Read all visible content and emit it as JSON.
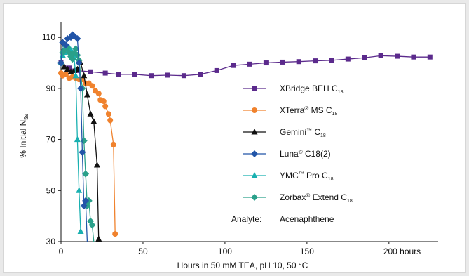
{
  "chart_data": {
    "type": "line",
    "xlabel": "Hours in 50 mM TEA, pH 10, 50 °C",
    "ylabel": {
      "prefix": "% Initial N",
      "subscript": "5s"
    },
    "xlim": [
      0,
      230
    ],
    "ylim": [
      30,
      115
    ],
    "x_ticks": [
      "0",
      "50",
      "100",
      "150",
      "200 hours"
    ],
    "x_tick_values": [
      0,
      50,
      100,
      150,
      200
    ],
    "y_ticks": [
      "30",
      "50",
      "70",
      "90",
      "110"
    ],
    "y_tick_values": [
      30,
      50,
      70,
      90,
      110
    ],
    "grid": false,
    "legend_position": "right",
    "series": [
      {
        "name": "XBridge BEH C18",
        "name_main": "XBridge BEH C",
        "name_sub": "18",
        "trademark": "",
        "color": "#5b2a8c",
        "marker": "square",
        "x": [
          0,
          5,
          10,
          18,
          27,
          35,
          45,
          55,
          65,
          75,
          85,
          95,
          105,
          115,
          125,
          135,
          145,
          155,
          165,
          175,
          185,
          195,
          205,
          215,
          225
        ],
        "y": [
          100,
          98,
          97,
          96.5,
          96,
          95.5,
          95.5,
          95,
          95.2,
          95,
          95.5,
          97,
          99,
          99.5,
          100,
          100.3,
          100.5,
          100.8,
          101,
          101.5,
          102,
          102.8,
          102.6,
          102.3,
          102.3
        ]
      },
      {
        "name": "XTerra® MS C18",
        "name_main": "XTerra",
        "name_sub": "18",
        "trademark": "®",
        "name_after": " MS C",
        "color": "#f0822d",
        "marker": "circle",
        "x": [
          0,
          1,
          3,
          5,
          7,
          9,
          11,
          13,
          15,
          17,
          19,
          21,
          23,
          24,
          26,
          27,
          29,
          30,
          32,
          33
        ],
        "y": [
          96,
          95,
          95.5,
          94,
          94.5,
          94,
          93.5,
          93.5,
          92,
          92,
          91,
          89,
          88,
          85.5,
          85,
          83,
          80,
          77.5,
          68,
          33
        ]
      },
      {
        "name": "Gemini™ C18",
        "name_main": "Gemini",
        "name_sub": "18",
        "trademark": "™",
        "name_after": " C",
        "color": "#111111",
        "marker": "triangle",
        "x": [
          0,
          2,
          4,
          6,
          8,
          10,
          12,
          14,
          16,
          18,
          20,
          22,
          23
        ],
        "y": [
          100,
          98.5,
          97.5,
          96.5,
          97,
          97.5,
          100,
          95,
          87.5,
          80,
          77,
          60,
          30
        ]
      },
      {
        "name": "Luna® C18(2)",
        "name_main": "Luna",
        "name_sub": "",
        "trademark": "®",
        "name_after": " C18(2)",
        "color": "#2255a8",
        "marker": "diamond",
        "x": [
          0,
          1,
          3,
          4,
          6,
          7,
          8,
          10,
          11,
          12,
          13,
          14,
          15,
          16
        ],
        "y": [
          100,
          108,
          107,
          109.5,
          110,
          111,
          110.5,
          109.5,
          100,
          90,
          65,
          44,
          46,
          30
        ]
      },
      {
        "name": "YMC™ Pro C18",
        "name_main": "YMC",
        "name_sub": "18",
        "trademark": "™",
        "name_after": " Pro C",
        "color": "#19b0b0",
        "marker": "triangle",
        "x": [
          0,
          1,
          2,
          3,
          4,
          5,
          6,
          7,
          8,
          9,
          10,
          11,
          12
        ],
        "y": [
          100,
          103,
          104,
          105,
          105.5,
          106,
          105,
          104,
          102,
          95,
          70,
          50,
          34
        ]
      },
      {
        "name": "Zorbax® Extend C18",
        "name_main": "Zorbax",
        "name_sub": "18",
        "trademark": "®",
        "name_after": " Extend C",
        "color": "#2aa08a",
        "marker": "diamond",
        "x": [
          0,
          1,
          2,
          3,
          4,
          5,
          6,
          7,
          8,
          9,
          10,
          11,
          13,
          14,
          15,
          16,
          17,
          18,
          19,
          20
        ],
        "y": [
          100,
          104,
          105,
          106.5,
          106,
          104,
          102.5,
          101.5,
          104,
          105.5,
          103,
          101,
          90,
          69.5,
          56.5,
          44,
          46,
          38,
          36.5,
          30
        ]
      }
    ],
    "annotation": {
      "label": "Analyte:",
      "value": "Acenaphthene"
    }
  }
}
